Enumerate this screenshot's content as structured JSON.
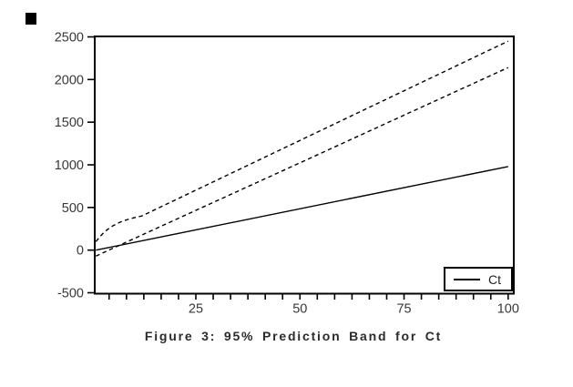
{
  "figure": {
    "title": "Figure 3: 95% Prediction Band for Ct",
    "background": "#ffffff",
    "line_color": "#000000",
    "text_color": "#383838"
  },
  "legend": {
    "items": [
      {
        "label": "Ct",
        "style": "solid"
      }
    ]
  },
  "chart_data": {
    "type": "line",
    "title": "Figure 3: 95% Prediction Band for Ct",
    "xlabel": "",
    "ylabel": "",
    "xlim": [
      1,
      100
    ],
    "ylim": [
      -500,
      2500
    ],
    "x_ticks": [
      25,
      50,
      75,
      100
    ],
    "x_minor_divisions": 6,
    "y_ticks": [
      -500,
      0,
      500,
      1000,
      1500,
      2000,
      2500
    ],
    "grid": false,
    "legend_position": "inside-bottom-right",
    "series": [
      {
        "name": "Ct",
        "style": "solid",
        "in_legend": true,
        "points": [
          [
            1,
            0
          ],
          [
            100,
            980
          ]
        ]
      },
      {
        "name": "upper-prediction-band",
        "style": "dashed",
        "in_legend": false,
        "points": [
          [
            1,
            100
          ],
          [
            2,
            160
          ],
          [
            3,
            210
          ],
          [
            4,
            250
          ],
          [
            5,
            283
          ],
          [
            6,
            310
          ],
          [
            7,
            332
          ],
          [
            8,
            350
          ],
          [
            9,
            364
          ],
          [
            10,
            378
          ],
          [
            12,
            400
          ],
          [
            25,
            703
          ],
          [
            50,
            1286
          ],
          [
            75,
            1868
          ],
          [
            100,
            2450
          ]
        ]
      },
      {
        "name": "lower-prediction-band",
        "style": "dashed",
        "in_legend": false,
        "points": [
          [
            1,
            -70
          ],
          [
            25,
            466
          ],
          [
            50,
            1024
          ],
          [
            75,
            1582
          ],
          [
            100,
            2140
          ]
        ]
      }
    ]
  }
}
